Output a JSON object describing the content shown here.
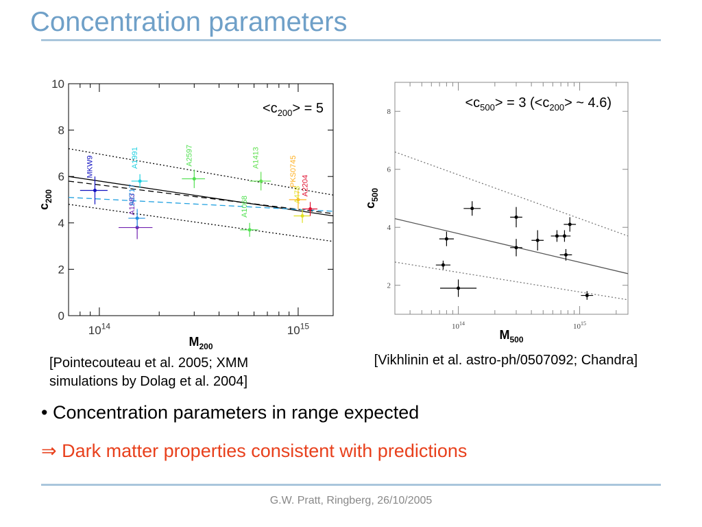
{
  "slide": {
    "title": "Concentration parameters",
    "left_caption": "[Pointecouteau et al. 2005; XMM simulations by Dolag et al. 2004]",
    "right_caption": "[Vikhlinin et al. astro-ph/0507092; Chandra]",
    "bullet": "• Concentration parameters in range expected",
    "implication": "⇒ Dark matter properties consistent with predictions",
    "footer": "G.W. Pratt, Ringberg, 26/10/2005",
    "colors": {
      "title": "#6fa0c8",
      "rule": "#a9c6dc",
      "implication": "#e8401c",
      "footer": "#888888"
    }
  },
  "chart_data": [
    {
      "type": "scatter",
      "x_scale": "log",
      "xlabel_main": "M",
      "xlabel_sub": "200",
      "ylabel_main": "c",
      "ylabel_sub": "200",
      "annotation": {
        "prefix": "<c",
        "sub": "200",
        "suffix": "> = 5"
      },
      "xlim": [
        70000000000000.0,
        1500000000000000.0
      ],
      "ylim": [
        0,
        10
      ],
      "yticks": [
        "0",
        "2",
        "4",
        "6",
        "8",
        "10"
      ],
      "xtick_labels": [
        {
          "value": 100000000000000.0,
          "base": "10",
          "exp": "14"
        },
        {
          "value": 1000000000000000.0,
          "base": "10",
          "exp": "15"
        }
      ],
      "points": [
        {
          "name": "MKW9",
          "x": 95000000000000.0,
          "y": 5.4,
          "xerr_lo": 15000000000000.0,
          "xerr_hi": 15000000000000.0,
          "yerr": 0.6,
          "color": "#1010c0"
        },
        {
          "name": "A1991",
          "x": 160000000000000.0,
          "y": 5.8,
          "xerr_lo": 15000000000000.0,
          "xerr_hi": 15000000000000.0,
          "yerr": 0.3,
          "color": "#20d0e0"
        },
        {
          "name": "A1983",
          "x": 155000000000000.0,
          "y": 3.8,
          "xerr_lo": 30000000000000.0,
          "xerr_hi": 30000000000000.0,
          "yerr": 0.5,
          "color": "#7020b0"
        },
        {
          "name": "A2717",
          "x": 155000000000000.0,
          "y": 4.2,
          "xerr_lo": 15000000000000.0,
          "xerr_hi": 15000000000000.0,
          "yerr": 0.4,
          "color": "#2090e0"
        },
        {
          "name": "A2597",
          "x": 300000000000000.0,
          "y": 5.9,
          "xerr_lo": 40000000000000.0,
          "xerr_hi": 40000000000000.0,
          "yerr": 0.4,
          "color": "#50e050"
        },
        {
          "name": "A1068",
          "x": 570000000000000.0,
          "y": 3.7,
          "xerr_lo": 60000000000000.0,
          "xerr_hi": 60000000000000.0,
          "yerr": 0.3,
          "color": "#50e050"
        },
        {
          "name": "A1413",
          "x": 650000000000000.0,
          "y": 5.8,
          "xerr_lo": 80000000000000.0,
          "xerr_hi": 80000000000000.0,
          "yerr": 0.4,
          "color": "#60e050"
        },
        {
          "name": "PKS0745",
          "x": 1000000000000000.0,
          "y": 5.0,
          "xerr_lo": 100000000000000.0,
          "xerr_hi": 100000000000000.0,
          "yerr": 0.4,
          "color": "#ffb020"
        },
        {
          "name": "A478",
          "x": 1050000000000000.0,
          "y": 4.3,
          "xerr_lo": 100000000000000.0,
          "xerr_hi": 100000000000000.0,
          "yerr": 0.3,
          "color": "#e0e020"
        },
        {
          "name": "A2204",
          "x": 1150000000000000.0,
          "y": 4.6,
          "xerr_lo": 100000000000000.0,
          "xerr_hi": 100000000000000.0,
          "yerr": 0.3,
          "color": "#e01030"
        }
      ],
      "lines": [
        {
          "style": "solid",
          "color": "#000000",
          "pts": [
            [
              70000000000000.0,
              6.0
            ],
            [
              1500000000000000.0,
              4.3
            ]
          ]
        },
        {
          "style": "dashed",
          "color": "#000000",
          "pts": [
            [
              70000000000000.0,
              5.8
            ],
            [
              1500000000000000.0,
              4.4
            ]
          ]
        },
        {
          "style": "dotted",
          "color": "#000000",
          "pts": [
            [
              70000000000000.0,
              7.2
            ],
            [
              1500000000000000.0,
              5.2
            ]
          ]
        },
        {
          "style": "dotted",
          "color": "#000000",
          "pts": [
            [
              70000000000000.0,
              4.8
            ],
            [
              1500000000000000.0,
              3.2
            ]
          ]
        },
        {
          "style": "dashed",
          "color": "#20a0e0",
          "pts": [
            [
              70000000000000.0,
              5.1
            ],
            [
              1500000000000000.0,
              4.5
            ]
          ]
        }
      ]
    },
    {
      "type": "scatter",
      "x_scale": "log",
      "xlabel_main": "M",
      "xlabel_sub": "500",
      "ylabel_main": "c",
      "ylabel_sub": "500",
      "annotation": {
        "prefix": "<c",
        "sub": "500",
        "mid": "> = 3 (<c",
        "sub2": "200",
        "suffix": "> ~ 4.6)"
      },
      "xlim": [
        30000000000000.0,
        2500000000000000.0
      ],
      "ylim": [
        1.0,
        9.0
      ],
      "yticks": [
        "2",
        "4",
        "6",
        "8"
      ],
      "xtick_labels": [
        {
          "value": 100000000000000.0,
          "base": "10",
          "exp": "14"
        },
        {
          "value": 1000000000000000.0,
          "base": "10",
          "exp": "15"
        }
      ],
      "points": [
        {
          "x": 75000000000000.0,
          "y": 2.7,
          "xerr": 0.06,
          "yerr": 0.15
        },
        {
          "x": 80000000000000.0,
          "y": 3.6,
          "xerr": 0.06,
          "yerr": 0.25
        },
        {
          "x": 100000000000000.0,
          "y": 1.9,
          "xerr": 0.15,
          "yerr": 0.3
        },
        {
          "x": 130000000000000.0,
          "y": 4.65,
          "xerr": 0.07,
          "yerr": 0.25
        },
        {
          "x": 300000000000000.0,
          "y": 4.35,
          "xerr": 0.05,
          "yerr": 0.35
        },
        {
          "x": 300000000000000.0,
          "y": 3.3,
          "xerr": 0.05,
          "yerr": 0.3
        },
        {
          "x": 450000000000000.0,
          "y": 3.55,
          "xerr": 0.05,
          "yerr": 0.35
        },
        {
          "x": 650000000000000.0,
          "y": 3.7,
          "xerr": 0.05,
          "yerr": 0.2
        },
        {
          "x": 750000000000000.0,
          "y": 3.7,
          "xerr": 0.05,
          "yerr": 0.2
        },
        {
          "x": 770000000000000.0,
          "y": 3.05,
          "xerr": 0.05,
          "yerr": 0.2
        },
        {
          "x": 830000000000000.0,
          "y": 4.1,
          "xerr": 0.05,
          "yerr": 0.25
        },
        {
          "x": 1150000000000000.0,
          "y": 1.65,
          "xerr": 0.05,
          "yerr": 0.15
        }
      ],
      "lines": [
        {
          "style": "solid",
          "color": "#555555",
          "pts": [
            [
              30000000000000.0,
              4.3
            ],
            [
              2500000000000000.0,
              2.4
            ]
          ]
        },
        {
          "style": "dotted",
          "color": "#777777",
          "pts": [
            [
              30000000000000.0,
              6.6
            ],
            [
              2500000000000000.0,
              3.7
            ]
          ]
        },
        {
          "style": "dotted",
          "color": "#777777",
          "pts": [
            [
              30000000000000.0,
              2.8
            ],
            [
              2500000000000000.0,
              1.5
            ]
          ]
        }
      ]
    }
  ]
}
